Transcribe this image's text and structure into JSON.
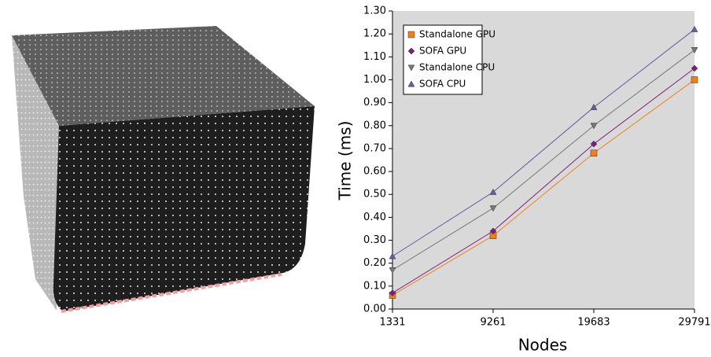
{
  "chart_data": {
    "type": "line",
    "categories": [
      "1331",
      "9261",
      "19683",
      "29791"
    ],
    "series": [
      {
        "name": "Standalone GPU",
        "color": "#f07f1e",
        "marker": "square",
        "values": [
          0.06,
          0.32,
          0.68,
          1.0
        ]
      },
      {
        "name": "SOFA GPU",
        "color": "#7b1f7b",
        "marker": "diamond",
        "values": [
          0.07,
          0.34,
          0.72,
          1.05
        ]
      },
      {
        "name": "Standalone CPU",
        "color": "#777777",
        "marker": "triangle-down",
        "values": [
          0.17,
          0.44,
          0.8,
          1.13
        ]
      },
      {
        "name": "SOFA CPU",
        "color": "#6a5aa0",
        "marker": "triangle-up",
        "values": [
          0.23,
          0.51,
          0.88,
          1.22
        ]
      }
    ],
    "x_label": "Nodes",
    "y_label": "Time (ms)",
    "ylim": [
      0,
      1.3
    ],
    "yticks": [
      {
        "value": 0,
        "label": "0.00"
      },
      {
        "value": 0.1,
        "label": "0.10"
      },
      {
        "value": 0.2,
        "label": "0.20"
      },
      {
        "value": 0.3,
        "label": "0.30"
      },
      {
        "value": 0.4,
        "label": "0.40"
      },
      {
        "value": 0.5,
        "label": "0.50"
      },
      {
        "value": 0.6,
        "label": "0.60"
      },
      {
        "value": 0.7,
        "label": "0.70"
      },
      {
        "value": 0.8,
        "label": "0.80"
      },
      {
        "value": 0.9,
        "label": "0.90"
      },
      {
        "value": 1.0,
        "label": "1.00"
      },
      {
        "value": 1.1,
        "label": "1.10"
      },
      {
        "value": 1.2,
        "label": "1.20"
      },
      {
        "value": 1.3,
        "label": "1.30"
      }
    ],
    "legend": "top-left",
    "plot_background": "#d9d9d9"
  }
}
